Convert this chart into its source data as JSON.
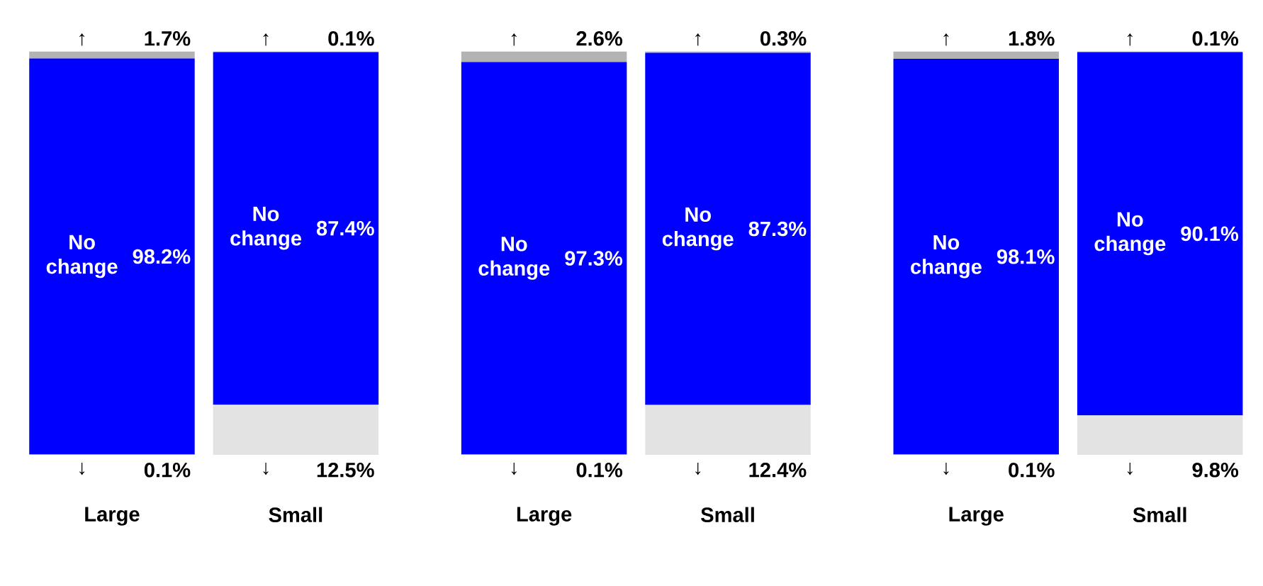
{
  "chart_data": {
    "type": "bar",
    "stacked": true,
    "categories": [
      "Large",
      "Small",
      "Large",
      "Small",
      "Large",
      "Small"
    ],
    "series": [
      {
        "name": "↓",
        "color": "#e3e3e3",
        "values": [
          0.1,
          12.5,
          0.1,
          12.4,
          0.1,
          9.8
        ],
        "value_labels": [
          "0.1%",
          "12.5%",
          "0.1%",
          "12.4%",
          "0.1%",
          "9.8%"
        ]
      },
      {
        "name": "No change",
        "color": "#0000ff",
        "values": [
          98.2,
          87.4,
          97.3,
          87.3,
          98.1,
          90.1
        ],
        "value_labels": [
          "98.2%",
          "87.4%",
          "97.3%",
          "87.3%",
          "98.1%",
          "90.1%"
        ]
      },
      {
        "name": "↑",
        "color": "#b3b3b3",
        "values": [
          1.7,
          0.1,
          2.6,
          0.3,
          1.8,
          0.1
        ],
        "value_labels": [
          "1.7%",
          "0.1%",
          "2.6%",
          "0.3%",
          "1.8%",
          "0.1%"
        ]
      }
    ],
    "ylim": [
      0,
      100
    ],
    "tick_labels": "x"
  }
}
